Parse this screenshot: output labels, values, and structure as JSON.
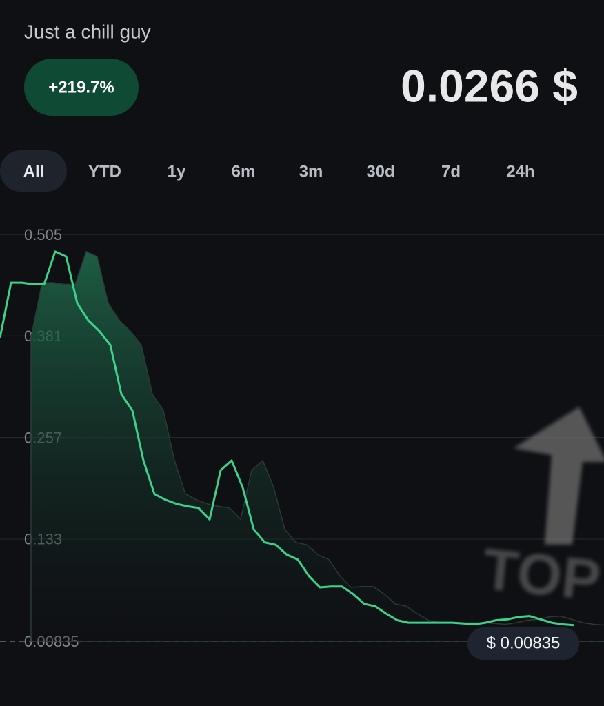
{
  "header": {
    "title": "Just a chill guy",
    "change": "+219.7%",
    "price": "0.0266 $"
  },
  "tabs": [
    "All",
    "YTD",
    "1y",
    "6m",
    "3m",
    "30d",
    "7d",
    "24h"
  ],
  "overlay": {
    "text": "TOP"
  },
  "chart_data": {
    "type": "line",
    "color": "#3ed18a",
    "values": [
      0.379,
      0.446,
      0.446,
      0.444,
      0.444,
      0.484,
      0.478,
      0.421,
      0.4,
      0.387,
      0.37,
      0.31,
      0.29,
      0.229,
      0.188,
      0.181,
      0.176,
      0.173,
      0.171,
      0.157,
      0.217,
      0.229,
      0.196,
      0.145,
      0.129,
      0.126,
      0.114,
      0.108,
      0.088,
      0.074,
      0.075,
      0.075,
      0.066,
      0.054,
      0.051,
      0.042,
      0.034,
      0.031,
      0.031,
      0.031,
      0.031,
      0.031,
      0.03,
      0.029,
      0.031,
      0.034,
      0.035,
      0.038,
      0.039,
      0.035,
      0.031,
      0.029,
      0.028
    ],
    "ylim": [
      0.00835,
      0.505
    ],
    "yticks": [
      0.00835,
      0.133,
      0.257,
      0.381,
      0.505
    ],
    "grid": true,
    "current_label": "$ 0.00835"
  }
}
